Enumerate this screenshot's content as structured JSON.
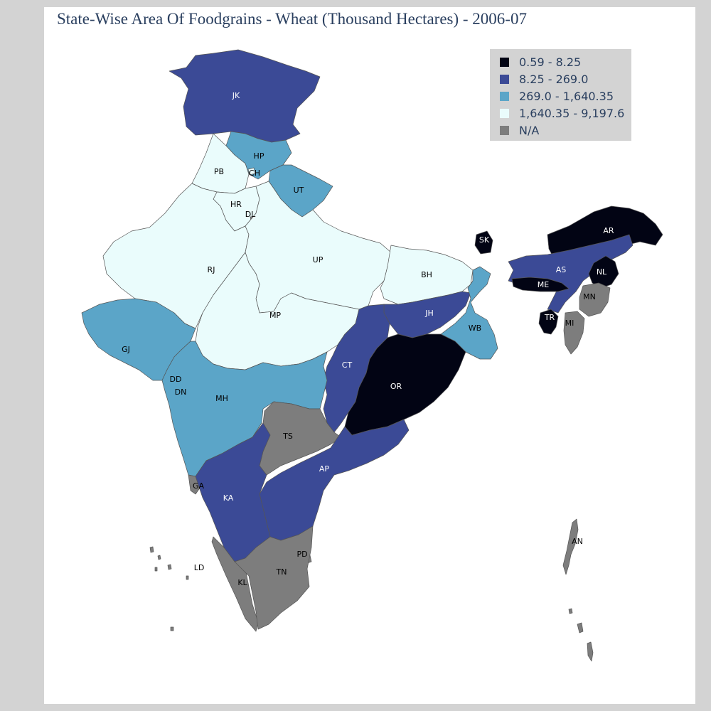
{
  "title": "State-Wise Area Of Foodgrains - Wheat (Thousand Hectares) - 2006-07",
  "legend": [
    {
      "label": "0.59 - 8.25",
      "color": "#020414"
    },
    {
      "label": "8.25 - 269.0",
      "color": "#3b4a96"
    },
    {
      "label": "269.0 - 1,640.35",
      "color": "#5ba5c8"
    },
    {
      "label": "1,640.35 - 9,197.6",
      "color": "#eafcfc"
    },
    {
      "label": "N/A",
      "color": "#7d7d7d"
    }
  ],
  "colors": {
    "background": "#d3d3d3",
    "panel": "#ffffff",
    "title": "#2a3f5f",
    "border": "#555555"
  },
  "states": [
    {
      "code": "JK",
      "class": 1
    },
    {
      "code": "HP",
      "class": 2
    },
    {
      "code": "PB",
      "class": 3
    },
    {
      "code": "CH",
      "class": 3
    },
    {
      "code": "UT",
      "class": 2
    },
    {
      "code": "HR",
      "class": 3
    },
    {
      "code": "DL",
      "class": 4
    },
    {
      "code": "RJ",
      "class": 3
    },
    {
      "code": "UP",
      "class": 3
    },
    {
      "code": "BH",
      "class": 3
    },
    {
      "code": "SK",
      "class": 0
    },
    {
      "code": "AR",
      "class": 0
    },
    {
      "code": "AS",
      "class": 1
    },
    {
      "code": "NL",
      "class": 0
    },
    {
      "code": "ME",
      "class": 0
    },
    {
      "code": "MN",
      "class": 4
    },
    {
      "code": "TR",
      "class": 0
    },
    {
      "code": "MI",
      "class": 4
    },
    {
      "code": "GJ",
      "class": 2
    },
    {
      "code": "MP",
      "class": 3
    },
    {
      "code": "JH",
      "class": 1
    },
    {
      "code": "WB",
      "class": 2
    },
    {
      "code": "DD",
      "class": 4
    },
    {
      "code": "DN",
      "class": 4
    },
    {
      "code": "CT",
      "class": 1
    },
    {
      "code": "OR",
      "class": 0
    },
    {
      "code": "MH",
      "class": 2
    },
    {
      "code": "TS",
      "class": 4
    },
    {
      "code": "AP",
      "class": 1
    },
    {
      "code": "GA",
      "class": 4
    },
    {
      "code": "KA",
      "class": 1
    },
    {
      "code": "LD",
      "class": 4
    },
    {
      "code": "KL",
      "class": 4
    },
    {
      "code": "PD",
      "class": 4
    },
    {
      "code": "TN",
      "class": 4
    },
    {
      "code": "AN",
      "class": 4
    }
  ]
}
